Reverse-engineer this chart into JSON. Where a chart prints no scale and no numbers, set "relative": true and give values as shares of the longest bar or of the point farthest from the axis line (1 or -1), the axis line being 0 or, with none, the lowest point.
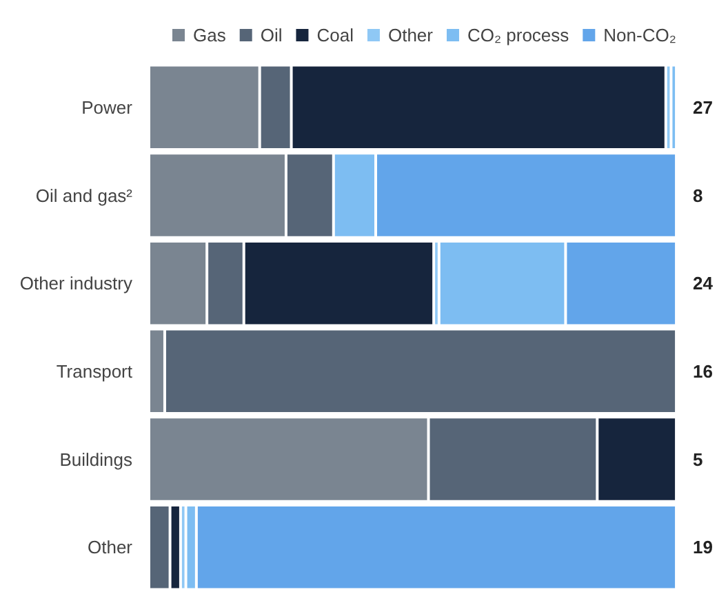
{
  "chart_data": {
    "type": "bar",
    "orientation": "horizontal",
    "stacked": true,
    "relative": true,
    "legend": "top",
    "categories": [
      "Power",
      "Oil and gas²",
      "Other industry",
      "Transport",
      "Buildings",
      "Other"
    ],
    "series": [
      {
        "name": "Gas",
        "color": "#7a8591",
        "values": [
          0.21,
          0.26,
          0.11,
          0.03,
          0.53,
          0
        ]
      },
      {
        "name": "Oil",
        "color": "#566577",
        "values": [
          0.06,
          0.09,
          0.07,
          0.97,
          0.32,
          0.04
        ]
      },
      {
        "name": "Coal",
        "color": "#16253d",
        "values": [
          0.71,
          0,
          0.36,
          0,
          0.15,
          0.02
        ]
      },
      {
        "name": "Other",
        "color": "#8fc8f5",
        "values": [
          0.01,
          0,
          0.01,
          0,
          0,
          0.01
        ]
      },
      {
        "name": "CO₂ process",
        "color": "#7dbdf2",
        "values": [
          0.01,
          0.08,
          0.24,
          0,
          0,
          0.02
        ]
      },
      {
        "name": "Non-CO₂",
        "color": "#62a5ea",
        "values": [
          0,
          0.57,
          0.21,
          0,
          0,
          0.91
        ]
      }
    ],
    "annotations": [
      "27",
      "8",
      "24",
      "16",
      "5",
      "19"
    ]
  }
}
